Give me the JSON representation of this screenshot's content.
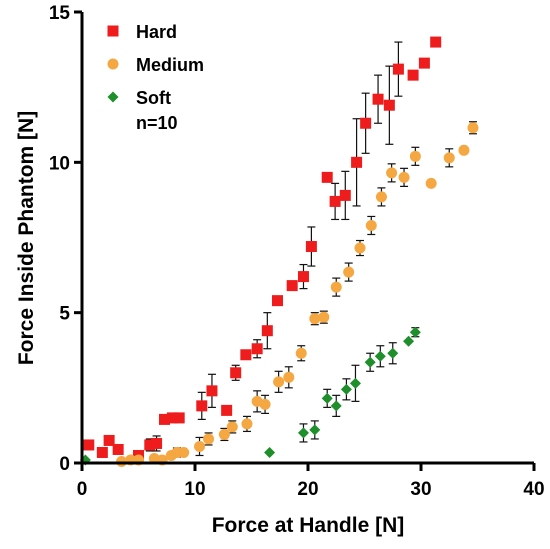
{
  "chart_data": {
    "type": "scatter",
    "xlabel": "Force at Handle [N]",
    "ylabel": "Force Inside Phantom [N]",
    "xlim": [
      0,
      40
    ],
    "ylim": [
      0,
      15
    ],
    "x_ticks": [
      0,
      10,
      20,
      30,
      40
    ],
    "y_ticks": [
      0,
      5,
      10,
      15
    ],
    "grid": false,
    "legend_position": "top-left",
    "annotation": "n=10",
    "series": [
      {
        "name": "Hard",
        "marker": "square",
        "color": "#ee1c1c",
        "points": [
          {
            "x": 0.6,
            "y": 0.6,
            "err": 0.15
          },
          {
            "x": 1.8,
            "y": 0.35,
            "err": 0
          },
          {
            "x": 2.4,
            "y": 0.75,
            "err": 0
          },
          {
            "x": 3.2,
            "y": 0.45,
            "err": 0.1
          },
          {
            "x": 5.0,
            "y": 0.25,
            "err": 0.1
          },
          {
            "x": 6.0,
            "y": 0.6,
            "err": 0.2
          },
          {
            "x": 6.6,
            "y": 0.65,
            "err": 0.25
          },
          {
            "x": 7.3,
            "y": 1.45,
            "err": 0
          },
          {
            "x": 8.0,
            "y": 1.5,
            "err": 0
          },
          {
            "x": 8.6,
            "y": 1.5,
            "err": 0
          },
          {
            "x": 10.6,
            "y": 1.9,
            "err": 0.45
          },
          {
            "x": 11.5,
            "y": 2.4,
            "err": 0.55
          },
          {
            "x": 12.8,
            "y": 1.75,
            "err": 0
          },
          {
            "x": 13.6,
            "y": 3.0,
            "err": 0.25
          },
          {
            "x": 14.5,
            "y": 3.6,
            "err": 0
          },
          {
            "x": 15.5,
            "y": 3.8,
            "err": 0.3
          },
          {
            "x": 16.4,
            "y": 4.4,
            "err": 0.6
          },
          {
            "x": 17.3,
            "y": 5.4,
            "err": 0.15
          },
          {
            "x": 18.6,
            "y": 5.9,
            "err": 0
          },
          {
            "x": 19.6,
            "y": 6.2,
            "err": 0.4
          },
          {
            "x": 20.3,
            "y": 7.2,
            "err": 0.65
          },
          {
            "x": 21.7,
            "y": 9.5,
            "err": 0
          },
          {
            "x": 22.4,
            "y": 8.7,
            "err": 0.6
          },
          {
            "x": 23.3,
            "y": 8.9,
            "err": 0.8
          },
          {
            "x": 24.3,
            "y": 10.0,
            "err": 1.45
          },
          {
            "x": 25.1,
            "y": 11.3,
            "err": 1.0
          },
          {
            "x": 26.2,
            "y": 12.1,
            "err": 0.8
          },
          {
            "x": 27.2,
            "y": 11.9,
            "err": 1.3
          },
          {
            "x": 28.0,
            "y": 13.1,
            "err": 0.9
          },
          {
            "x": 29.3,
            "y": 12.9,
            "err": 0
          },
          {
            "x": 30.3,
            "y": 13.3,
            "err": 0
          },
          {
            "x": 31.3,
            "y": 14.0,
            "err": 0
          }
        ]
      },
      {
        "name": "Medium",
        "marker": "circle",
        "color": "#f5a741",
        "points": [
          {
            "x": 3.5,
            "y": 0.05,
            "err": 0
          },
          {
            "x": 4.3,
            "y": 0.1,
            "err": 0
          },
          {
            "x": 5.0,
            "y": 0.1,
            "err": 0.1
          },
          {
            "x": 6.4,
            "y": 0.15,
            "err": 0.1
          },
          {
            "x": 7.1,
            "y": 0.1,
            "err": 0
          },
          {
            "x": 7.9,
            "y": 0.25,
            "err": 0.1
          },
          {
            "x": 8.4,
            "y": 0.35,
            "err": 0.15
          },
          {
            "x": 9.0,
            "y": 0.35,
            "err": 0
          },
          {
            "x": 10.4,
            "y": 0.55,
            "err": 0.3
          },
          {
            "x": 11.2,
            "y": 0.8,
            "err": 0.2
          },
          {
            "x": 12.6,
            "y": 0.95,
            "err": 0.2
          },
          {
            "x": 13.3,
            "y": 1.2,
            "err": 0.2
          },
          {
            "x": 14.6,
            "y": 1.3,
            "err": 0.25
          },
          {
            "x": 15.5,
            "y": 2.05,
            "err": 0.35
          },
          {
            "x": 16.2,
            "y": 1.95,
            "err": 0.3
          },
          {
            "x": 17.4,
            "y": 2.7,
            "err": 0.35
          },
          {
            "x": 18.3,
            "y": 2.85,
            "err": 0.35
          },
          {
            "x": 19.4,
            "y": 3.65,
            "err": 0.25
          },
          {
            "x": 20.6,
            "y": 4.8,
            "err": 0.2
          },
          {
            "x": 21.4,
            "y": 4.85,
            "err": 0.2
          },
          {
            "x": 22.5,
            "y": 5.85,
            "err": 0.3
          },
          {
            "x": 23.6,
            "y": 6.35,
            "err": 0.3
          },
          {
            "x": 24.6,
            "y": 7.15,
            "err": 0.25
          },
          {
            "x": 25.6,
            "y": 7.9,
            "err": 0.3
          },
          {
            "x": 26.5,
            "y": 8.85,
            "err": 0.3
          },
          {
            "x": 27.4,
            "y": 9.65,
            "err": 0.3
          },
          {
            "x": 28.5,
            "y": 9.5,
            "err": 0.3
          },
          {
            "x": 29.5,
            "y": 10.2,
            "err": 0.3
          },
          {
            "x": 30.9,
            "y": 9.3,
            "err": 0
          },
          {
            "x": 32.5,
            "y": 10.15,
            "err": 0.3
          },
          {
            "x": 33.8,
            "y": 10.4,
            "err": 0
          },
          {
            "x": 34.6,
            "y": 11.15,
            "err": 0.2
          }
        ]
      },
      {
        "name": "Soft",
        "marker": "diamond",
        "color": "#1e8f2a",
        "points": [
          {
            "x": 0.3,
            "y": 0.1,
            "err": 0
          },
          {
            "x": 16.6,
            "y": 0.35,
            "err": 0
          },
          {
            "x": 19.6,
            "y": 1.0,
            "err": 0.3
          },
          {
            "x": 20.6,
            "y": 1.1,
            "err": 0.3
          },
          {
            "x": 21.7,
            "y": 2.15,
            "err": 0.3
          },
          {
            "x": 22.5,
            "y": 1.9,
            "err": 0.35
          },
          {
            "x": 23.4,
            "y": 2.45,
            "err": 0.35
          },
          {
            "x": 24.2,
            "y": 2.65,
            "err": 0.6
          },
          {
            "x": 25.5,
            "y": 3.35,
            "err": 0.3
          },
          {
            "x": 26.4,
            "y": 3.55,
            "err": 0.35
          },
          {
            "x": 27.5,
            "y": 3.65,
            "err": 0.35
          },
          {
            "x": 28.9,
            "y": 4.05,
            "err": 0
          },
          {
            "x": 29.5,
            "y": 4.35,
            "err": 0.15
          }
        ]
      }
    ]
  }
}
